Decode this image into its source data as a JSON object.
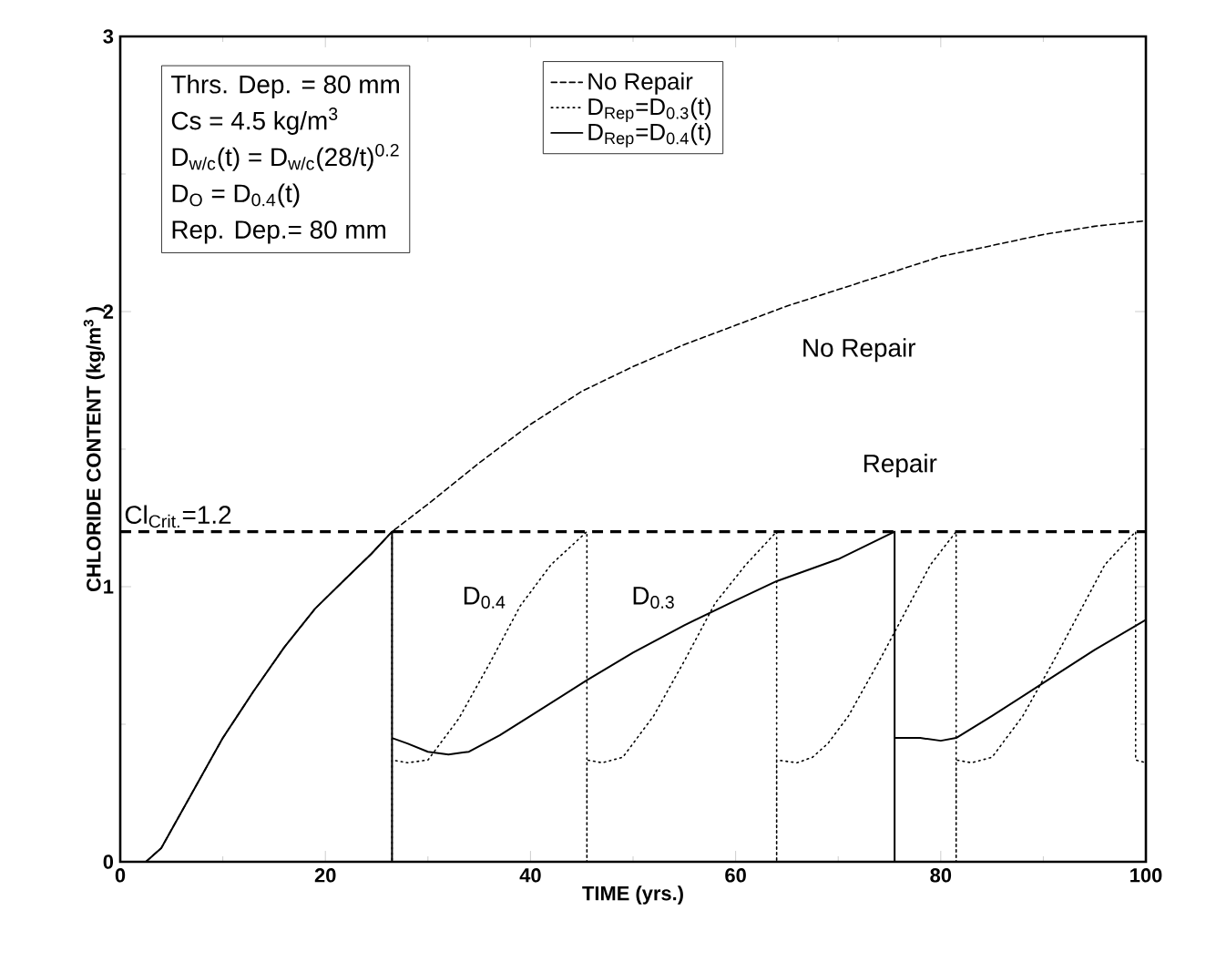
{
  "chart_data": {
    "type": "line",
    "xlabel": "TIME (yrs.)",
    "ylabel": "CHLORIDE CONTENT (kg/m$^{3}$ )",
    "xlim": [
      0,
      100
    ],
    "ylim": [
      0,
      3
    ],
    "xticks": [
      0,
      20,
      40,
      60,
      80,
      100
    ],
    "yticks": [
      0,
      1,
      2,
      3
    ],
    "grid": false,
    "legend": "top",
    "marker": "none",
    "series": [
      {
        "name": "No Repair",
        "color": "#000000",
        "line_style": "dashed",
        "x": [
          2.5,
          4,
          7,
          10,
          13,
          16,
          19,
          22,
          24.5,
          26.5,
          30,
          35,
          40,
          45,
          50,
          55,
          60,
          65,
          70,
          75,
          80,
          85,
          90,
          95,
          100
        ],
        "values": [
          0,
          0.05,
          0.25,
          0.45,
          0.62,
          0.78,
          0.92,
          1.03,
          1.12,
          1.2,
          1.3,
          1.45,
          1.59,
          1.71,
          1.8,
          1.88,
          1.95,
          2.02,
          2.08,
          2.14,
          2.2,
          2.24,
          2.28,
          2.31,
          2.33
        ]
      },
      {
        "name": "D$_{Rep}$=D$_{0.3}$(t)",
        "color": "#000000",
        "line_style": "dotted",
        "x": [
          26.5,
          26.5,
          26.5,
          28,
          30,
          31,
          33,
          36,
          39,
          42,
          45.5,
          45.5,
          45.5,
          47,
          49,
          50,
          52,
          55,
          58,
          61,
          64,
          64,
          64,
          66,
          67.5,
          69,
          71,
          74,
          77,
          79,
          81.5,
          81.5,
          81.5,
          83,
          85,
          86,
          88,
          91,
          94,
          96,
          99,
          99,
          100
        ],
        "values": [
          1.2,
          0,
          0.37,
          0.36,
          0.37,
          0.42,
          0.52,
          0.72,
          0.93,
          1.08,
          1.2,
          0,
          0.37,
          0.36,
          0.38,
          0.43,
          0.53,
          0.73,
          0.94,
          1.08,
          1.2,
          0,
          0.37,
          0.36,
          0.38,
          0.43,
          0.53,
          0.73,
          0.94,
          1.08,
          1.2,
          0,
          0.37,
          0.36,
          0.38,
          0.43,
          0.53,
          0.73,
          0.94,
          1.08,
          1.2,
          0.37,
          0.36
        ]
      },
      {
        "name": "D$_{Rep}$=D$_{0.4}$(t)",
        "color": "#000000",
        "line_style": "solid",
        "x": [
          2.5,
          4,
          7,
          10,
          13,
          16,
          19,
          22,
          24.5,
          26.5,
          26.5,
          26.5,
          28,
          30,
          32,
          34,
          37,
          40,
          45.5,
          50,
          55,
          60,
          64,
          70,
          75.5,
          75.5,
          75.5,
          78,
          80,
          81.5,
          85,
          90,
          95,
          100
        ],
        "values": [
          0,
          0.05,
          0.25,
          0.45,
          0.62,
          0.78,
          0.92,
          1.03,
          1.12,
          1.2,
          0,
          0.45,
          0.43,
          0.4,
          0.39,
          0.4,
          0.46,
          0.53,
          0.66,
          0.76,
          0.86,
          0.95,
          1.02,
          1.1,
          1.2,
          0,
          0.45,
          0.45,
          0.44,
          0.45,
          0.53,
          0.65,
          0.77,
          0.88
        ]
      }
    ],
    "ref_lines": [
      {
        "axis": "y",
        "value": 1.2,
        "label": "Cl$_{Crit.}$=1.2",
        "color": "#000000",
        "line_style": "dashed"
      }
    ],
    "annotations": [
      "Thrs. Dep. = 80 mm",
      "Cs = 4.5 kg/m$^{3}$",
      "D$_{w/c}$(t) = D$_{w/c}$(28/t)$^{0.2}$",
      "D$_{O}$ = D$_{0.4}$(t)",
      "Rep. Dep.= 80 mm",
      "No Repair",
      "Repair",
      "D$_{0.4}$",
      "D$_{0.3}$"
    ]
  }
}
